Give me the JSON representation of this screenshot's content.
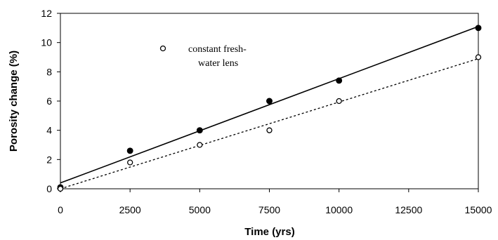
{
  "chart_data": {
    "type": "scatter",
    "title": "",
    "xlabel": "Time (yrs)",
    "ylabel": "Porosity change (%)",
    "xlim": [
      0,
      15000
    ],
    "ylim": [
      0,
      12
    ],
    "xticks": [
      "0",
      "2500",
      "5000",
      "7500",
      "10000",
      "12500",
      "15000"
    ],
    "yticks": [
      "0",
      "2",
      "4",
      "6",
      "8",
      "10",
      "12"
    ],
    "grid": false,
    "legend": {
      "position": "top-left",
      "text_line1": "constant fresh-",
      "text_line2": "water lens"
    },
    "series": [
      {
        "marker": "filled-circle",
        "color": "#000000",
        "x": [
          0,
          2500,
          5000,
          7500,
          10000,
          15000
        ],
        "y": [
          0.1,
          2.6,
          4.0,
          6.0,
          7.4,
          11.0
        ],
        "trendline": {
          "style": "solid",
          "start": [
            0,
            0.4
          ],
          "end": [
            15000,
            11.1
          ]
        }
      },
      {
        "name": "constant fresh-water lens",
        "marker": "open-circle",
        "color": "#000000",
        "x": [
          0,
          2500,
          5000,
          7500,
          10000,
          15000
        ],
        "y": [
          0.0,
          1.8,
          3.0,
          4.0,
          6.0,
          9.0
        ],
        "trendline": {
          "style": "dashed",
          "start": [
            0,
            0.0
          ],
          "end": [
            15000,
            8.9
          ]
        }
      }
    ]
  }
}
